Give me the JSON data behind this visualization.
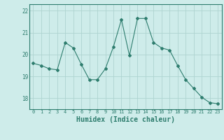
{
  "x": [
    0,
    1,
    2,
    3,
    4,
    5,
    6,
    7,
    8,
    9,
    10,
    11,
    12,
    13,
    14,
    15,
    16,
    17,
    18,
    19,
    20,
    21,
    22,
    23
  ],
  "y": [
    19.6,
    19.5,
    19.35,
    19.3,
    20.55,
    20.3,
    19.55,
    18.85,
    18.85,
    19.35,
    20.35,
    21.6,
    19.95,
    21.65,
    21.65,
    20.55,
    20.3,
    20.2,
    19.5,
    18.85,
    18.45,
    18.05,
    17.8,
    17.75
  ],
  "line_color": "#2e7d6e",
  "marker": "D",
  "marker_size": 2.0,
  "bg_color": "#ceecea",
  "grid_color": "#aed4d0",
  "tick_color": "#2e7d6e",
  "axis_color": "#2e7d6e",
  "xlabel": "Humidex (Indice chaleur)",
  "xlabel_fontsize": 7,
  "xlabel_color": "#2e7d6e",
  "yticks": [
    18,
    19,
    20,
    21,
    22
  ],
  "xticks": [
    0,
    1,
    2,
    3,
    4,
    5,
    6,
    7,
    8,
    9,
    10,
    11,
    12,
    13,
    14,
    15,
    16,
    17,
    18,
    19,
    20,
    21,
    22,
    23
  ],
  "ylim": [
    17.5,
    22.3
  ],
  "xlim": [
    -0.5,
    23.5
  ]
}
